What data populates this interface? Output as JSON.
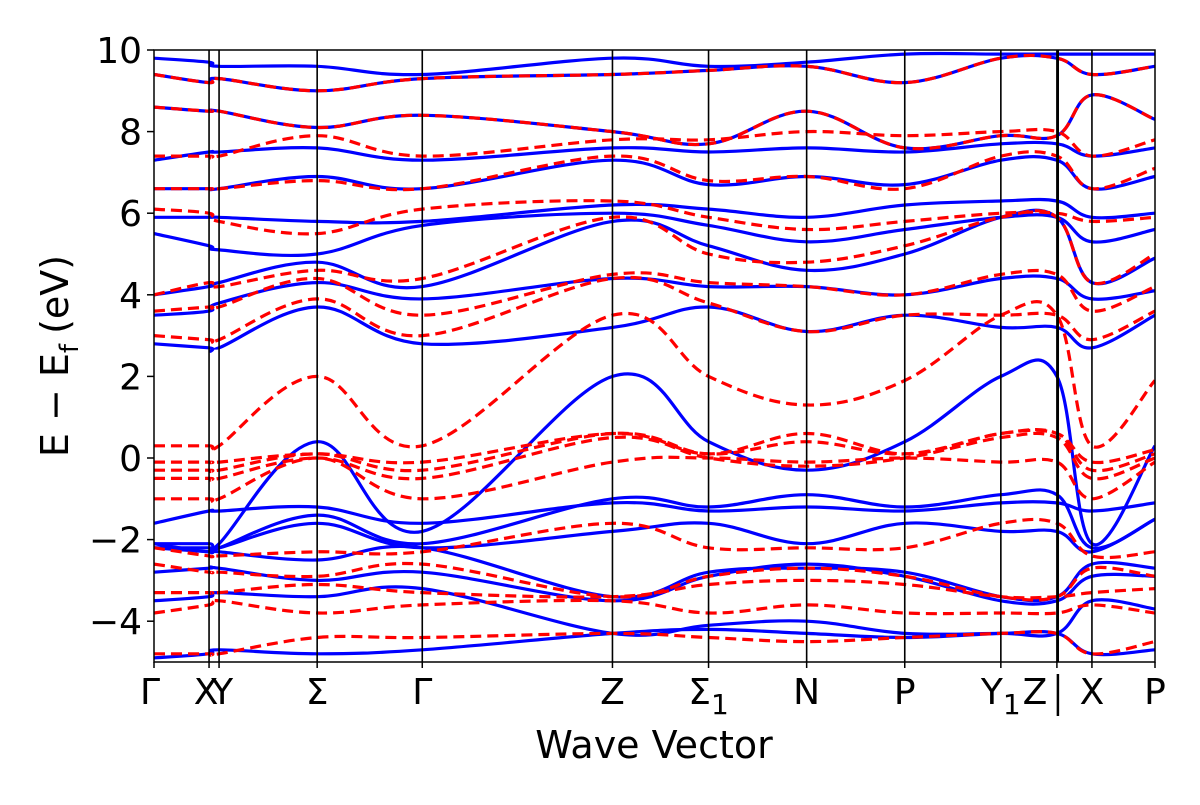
{
  "chart_data": {
    "type": "line",
    "xlabel": "Wave Vector",
    "ylabel": "E − E_f (eV)",
    "ylabel_parts": {
      "main": "E − E",
      "sub": "f",
      "unit": "(eV)"
    },
    "ylim": [
      -5,
      10
    ],
    "y_ticks": [
      -4,
      -2,
      0,
      2,
      4,
      6,
      8,
      10
    ],
    "y_tick_labels": [
      "−4",
      "−2",
      "0",
      "2",
      "4",
      "6",
      "8",
      "10"
    ],
    "x_range": [
      0,
      1
    ],
    "grid": false,
    "k_points": [
      {
        "label": "Γ",
        "x": 0.0
      },
      {
        "label": "X",
        "x": 0.055
      },
      {
        "label": "Y",
        "x": 0.065
      },
      {
        "label": "Σ",
        "x": 0.163
      },
      {
        "label": "Γ",
        "x": 0.268
      },
      {
        "label": "Z",
        "x": 0.458
      },
      {
        "label": "Σ",
        "sub": "1",
        "x": 0.554
      },
      {
        "label": "N",
        "x": 0.652
      },
      {
        "label": "P",
        "x": 0.75
      },
      {
        "label": "Y",
        "sub": "1",
        "x": 0.846
      },
      {
        "label": "Z",
        "x": 0.902
      },
      {
        "label": "|",
        "x": 0.902
      },
      {
        "label": "X",
        "x": 0.937
      },
      {
        "label": "P",
        "x": 1.0
      }
    ],
    "path_break_x": 0.902,
    "series": [
      {
        "style": "solid",
        "color": "#0000ff",
        "bands": [
          {
            "y": [
              -4.9,
              -4.8,
              -4.7,
              -4.8,
              -4.7,
              -4.3,
              -4.2,
              -4.3,
              -4.4,
              -4.3,
              -4.3,
              -4.8,
              -4.7
            ]
          },
          {
            "y": [
              -3.5,
              -3.4,
              -3.3,
              -3.4,
              -3.2,
              -4.3,
              -4.1,
              -4.0,
              -4.3,
              -4.3,
              -4.3,
              -3.5,
              -3.7
            ]
          },
          {
            "y": [
              -2.8,
              -2.7,
              -2.7,
              -3.0,
              -2.8,
              -3.5,
              -2.9,
              -2.6,
              -2.9,
              -3.5,
              -3.5,
              -2.9,
              -2.9
            ]
          },
          {
            "y": [
              -2.2,
              -2.3,
              -2.3,
              -2.5,
              -2.2,
              -3.4,
              -2.8,
              -2.7,
              -2.8,
              -3.4,
              -3.4,
              -2.6,
              -2.7
            ]
          },
          {
            "y": [
              -2.2,
              -2.2,
              -2.2,
              -1.6,
              -2.2,
              -1.8,
              -1.6,
              -2.1,
              -1.6,
              -1.8,
              -1.8,
              -2.3,
              -1.5
            ]
          },
          {
            "y": [
              -1.6,
              -1.3,
              -1.3,
              -1.2,
              -1.6,
              -1.1,
              -1.3,
              -1.2,
              -1.3,
              -1.1,
              -1.1,
              -1.3,
              -1.1
            ]
          },
          {
            "y": [
              -2.1,
              -2.3,
              -2.2,
              -1.4,
              -2.1,
              -1.0,
              -1.2,
              -0.9,
              -1.2,
              -0.9,
              -0.9,
              -2.2,
              -1.5
            ]
          },
          {
            "y": [
              -2.1,
              -2.1,
              -2.1,
              0.4,
              -1.8,
              2.0,
              0.4,
              -0.3,
              0.4,
              2.0,
              2.0,
              -2.1,
              0.3
            ]
          },
          {
            "y": [
              2.8,
              2.7,
              2.7,
              3.7,
              2.8,
              3.2,
              3.7,
              3.1,
              3.5,
              3.2,
              3.2,
              2.7,
              3.5
            ]
          },
          {
            "y": [
              3.5,
              3.6,
              3.8,
              4.3,
              3.9,
              4.4,
              4.2,
              4.2,
              4.0,
              4.4,
              4.4,
              3.9,
              4.1
            ]
          },
          {
            "y": [
              4.0,
              4.2,
              4.3,
              4.8,
              4.2,
              5.8,
              5.2,
              4.6,
              5.0,
              5.9,
              5.9,
              4.3,
              4.9
            ]
          },
          {
            "y": [
              5.5,
              5.2,
              5.1,
              5.0,
              5.7,
              6.0,
              5.7,
              5.3,
              5.6,
              5.9,
              5.9,
              5.3,
              5.6
            ]
          },
          {
            "y": [
              5.9,
              5.9,
              5.9,
              5.8,
              5.8,
              6.2,
              6.1,
              5.9,
              6.2,
              6.3,
              6.3,
              5.9,
              6.0
            ]
          },
          {
            "y": [
              6.6,
              6.6,
              6.6,
              6.9,
              6.6,
              7.3,
              6.7,
              6.9,
              6.7,
              7.3,
              7.3,
              6.6,
              6.9
            ]
          },
          {
            "y": [
              7.3,
              7.5,
              7.5,
              7.6,
              7.3,
              7.6,
              7.5,
              7.6,
              7.5,
              7.7,
              7.7,
              7.4,
              7.6
            ]
          },
          {
            "y": [
              8.6,
              8.5,
              8.5,
              8.1,
              8.4,
              8.0,
              7.7,
              8.5,
              7.6,
              7.9,
              7.9,
              8.9,
              8.3
            ]
          },
          {
            "y": [
              9.4,
              9.2,
              9.3,
              9.0,
              9.3,
              9.4,
              9.5,
              9.6,
              9.2,
              9.8,
              9.8,
              9.4,
              9.6
            ]
          },
          {
            "y": [
              9.8,
              9.7,
              9.6,
              9.6,
              9.4,
              9.8,
              9.6,
              9.7,
              9.9,
              9.9,
              9.9,
              9.9,
              9.9
            ]
          }
        ]
      },
      {
        "style": "dashed",
        "color": "#ff0000",
        "bands": [
          {
            "y": [
              -4.8,
              -4.8,
              -4.8,
              -4.4,
              -4.4,
              -4.3,
              -4.4,
              -4.5,
              -4.4,
              -4.3,
              -4.3,
              -4.8,
              -4.5
            ]
          },
          {
            "y": [
              -3.8,
              -3.6,
              -3.5,
              -3.8,
              -3.6,
              -3.5,
              -3.8,
              -3.6,
              -3.8,
              -3.8,
              -3.8,
              -3.6,
              -3.8
            ]
          },
          {
            "y": [
              -3.3,
              -3.3,
              -3.3,
              -3.1,
              -3.3,
              -3.4,
              -3.1,
              -3.0,
              -3.1,
              -3.4,
              -3.4,
              -3.3,
              -3.2
            ]
          },
          {
            "y": [
              -2.6,
              -2.8,
              -2.8,
              -2.9,
              -2.6,
              -3.4,
              -2.9,
              -2.7,
              -2.9,
              -3.4,
              -3.4,
              -2.7,
              -2.9
            ]
          },
          {
            "y": [
              -2.2,
              -2.4,
              -2.4,
              -2.3,
              -2.3,
              -1.6,
              -2.2,
              -2.2,
              -2.2,
              -1.6,
              -1.6,
              -2.4,
              -2.3
            ]
          },
          {
            "y": [
              -1.0,
              -1.0,
              -1.0,
              0.0,
              -1.0,
              -0.1,
              0.0,
              -0.1,
              0.0,
              -0.1,
              -0.1,
              -1.0,
              -0.1
            ]
          },
          {
            "y": [
              -0.5,
              -0.5,
              -0.5,
              0.0,
              -0.5,
              0.5,
              0.0,
              -0.2,
              0.0,
              0.5,
              0.5,
              -0.5,
              0.0
            ]
          },
          {
            "y": [
              -0.3,
              -0.3,
              -0.3,
              0.1,
              -0.3,
              0.6,
              0.1,
              0.4,
              0.1,
              0.6,
              0.6,
              -0.3,
              0.1
            ]
          },
          {
            "y": [
              -0.1,
              -0.1,
              -0.1,
              0.1,
              -0.1,
              0.6,
              0.1,
              0.6,
              0.1,
              0.6,
              0.6,
              -0.1,
              0.2
            ]
          },
          {
            "y": [
              0.3,
              0.3,
              0.3,
              2.0,
              0.3,
              3.5,
              2.0,
              1.3,
              1.9,
              3.5,
              3.5,
              0.3,
              1.9
            ]
          },
          {
            "y": [
              3.0,
              2.9,
              2.9,
              3.9,
              3.0,
              4.4,
              3.8,
              3.1,
              3.5,
              3.5,
              3.5,
              2.9,
              3.6
            ]
          },
          {
            "y": [
              3.6,
              3.7,
              3.7,
              4.4,
              3.5,
              4.5,
              4.3,
              4.2,
              4.0,
              4.5,
              4.5,
              3.6,
              4.2
            ]
          },
          {
            "y": [
              4.0,
              4.3,
              4.2,
              4.6,
              4.4,
              5.9,
              5.0,
              4.8,
              5.2,
              5.9,
              5.9,
              4.3,
              5.0
            ]
          },
          {
            "y": [
              6.1,
              6.0,
              5.8,
              5.5,
              6.1,
              6.3,
              5.9,
              5.6,
              5.8,
              6.0,
              6.0,
              5.8,
              5.9
            ]
          },
          {
            "y": [
              6.6,
              6.6,
              6.6,
              6.8,
              6.6,
              7.4,
              6.8,
              6.9,
              6.6,
              7.4,
              7.4,
              6.6,
              7.1
            ]
          },
          {
            "y": [
              7.4,
              7.4,
              7.4,
              7.9,
              7.4,
              7.8,
              7.8,
              8.0,
              7.9,
              8.0,
              8.0,
              7.4,
              7.8
            ]
          },
          {
            "y": [
              8.6,
              8.5,
              8.5,
              8.1,
              8.4,
              8.0,
              7.7,
              8.5,
              7.6,
              7.9,
              7.9,
              8.9,
              8.3
            ]
          },
          {
            "y": [
              9.4,
              9.2,
              9.3,
              9.0,
              9.3,
              9.4,
              9.5,
              9.6,
              9.2,
              9.8,
              9.8,
              9.4,
              9.6
            ]
          }
        ]
      }
    ]
  }
}
